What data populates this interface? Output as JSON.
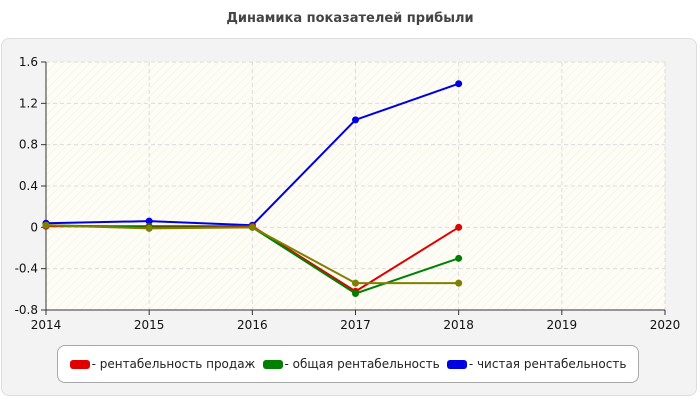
{
  "chart_data": {
    "type": "line",
    "title": "Динамика показателей прибыли",
    "xlabel": "",
    "ylabel": "",
    "xlim": [
      2014,
      2020
    ],
    "ylim": [
      -0.8,
      1.6
    ],
    "x_ticks": [
      "2014",
      "2015",
      "2016",
      "2017",
      "2018",
      "2019",
      "2020"
    ],
    "y_ticks": [
      "1.6",
      "1.2",
      "0.8",
      "0.4",
      "0",
      "-0.4",
      "-0.8"
    ],
    "grid": true,
    "legend_position": "bottom",
    "series": [
      {
        "name": "рентабельность продаж",
        "color": "#e00000",
        "x": [
          2014,
          2015,
          2016,
          2017,
          2018
        ],
        "values": [
          0.01,
          0.01,
          0.01,
          -0.62,
          0.0
        ]
      },
      {
        "name": "общая рентабельность",
        "color": "#008000",
        "x": [
          2014,
          2015,
          2016,
          2017,
          2018
        ],
        "values": [
          0.02,
          0.0,
          0.0,
          -0.64,
          -0.3
        ]
      },
      {
        "name": "чистая рентабельность",
        "color": "#0000e0",
        "x": [
          2014,
          2015,
          2016,
          2017,
          2018
        ],
        "values": [
          0.04,
          0.06,
          0.02,
          1.04,
          1.39
        ]
      },
      {
        "name": "",
        "color": "#808000",
        "x": [
          2014,
          2015,
          2016,
          2017,
          2018
        ],
        "values": [
          0.02,
          -0.01,
          0.0,
          -0.54,
          -0.54
        ]
      }
    ]
  }
}
